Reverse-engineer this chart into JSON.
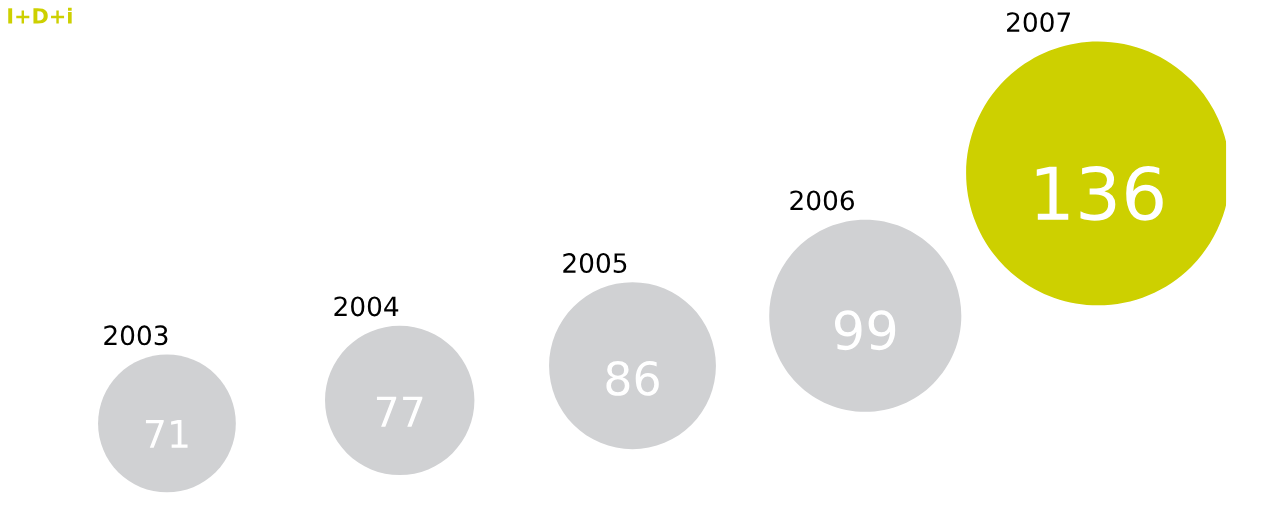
{
  "chart_data": {
    "type": "other",
    "title": "I+D+i",
    "categories": [
      "2003",
      "2004",
      "2005",
      "2006",
      "2007"
    ],
    "values": [
      71,
      77,
      86,
      99,
      136
    ],
    "colors": [
      "#d0d1d3",
      "#d0d1d3",
      "#d0d1d3",
      "#d0d1d3",
      "#cdd000"
    ],
    "data_labels": true
  }
}
